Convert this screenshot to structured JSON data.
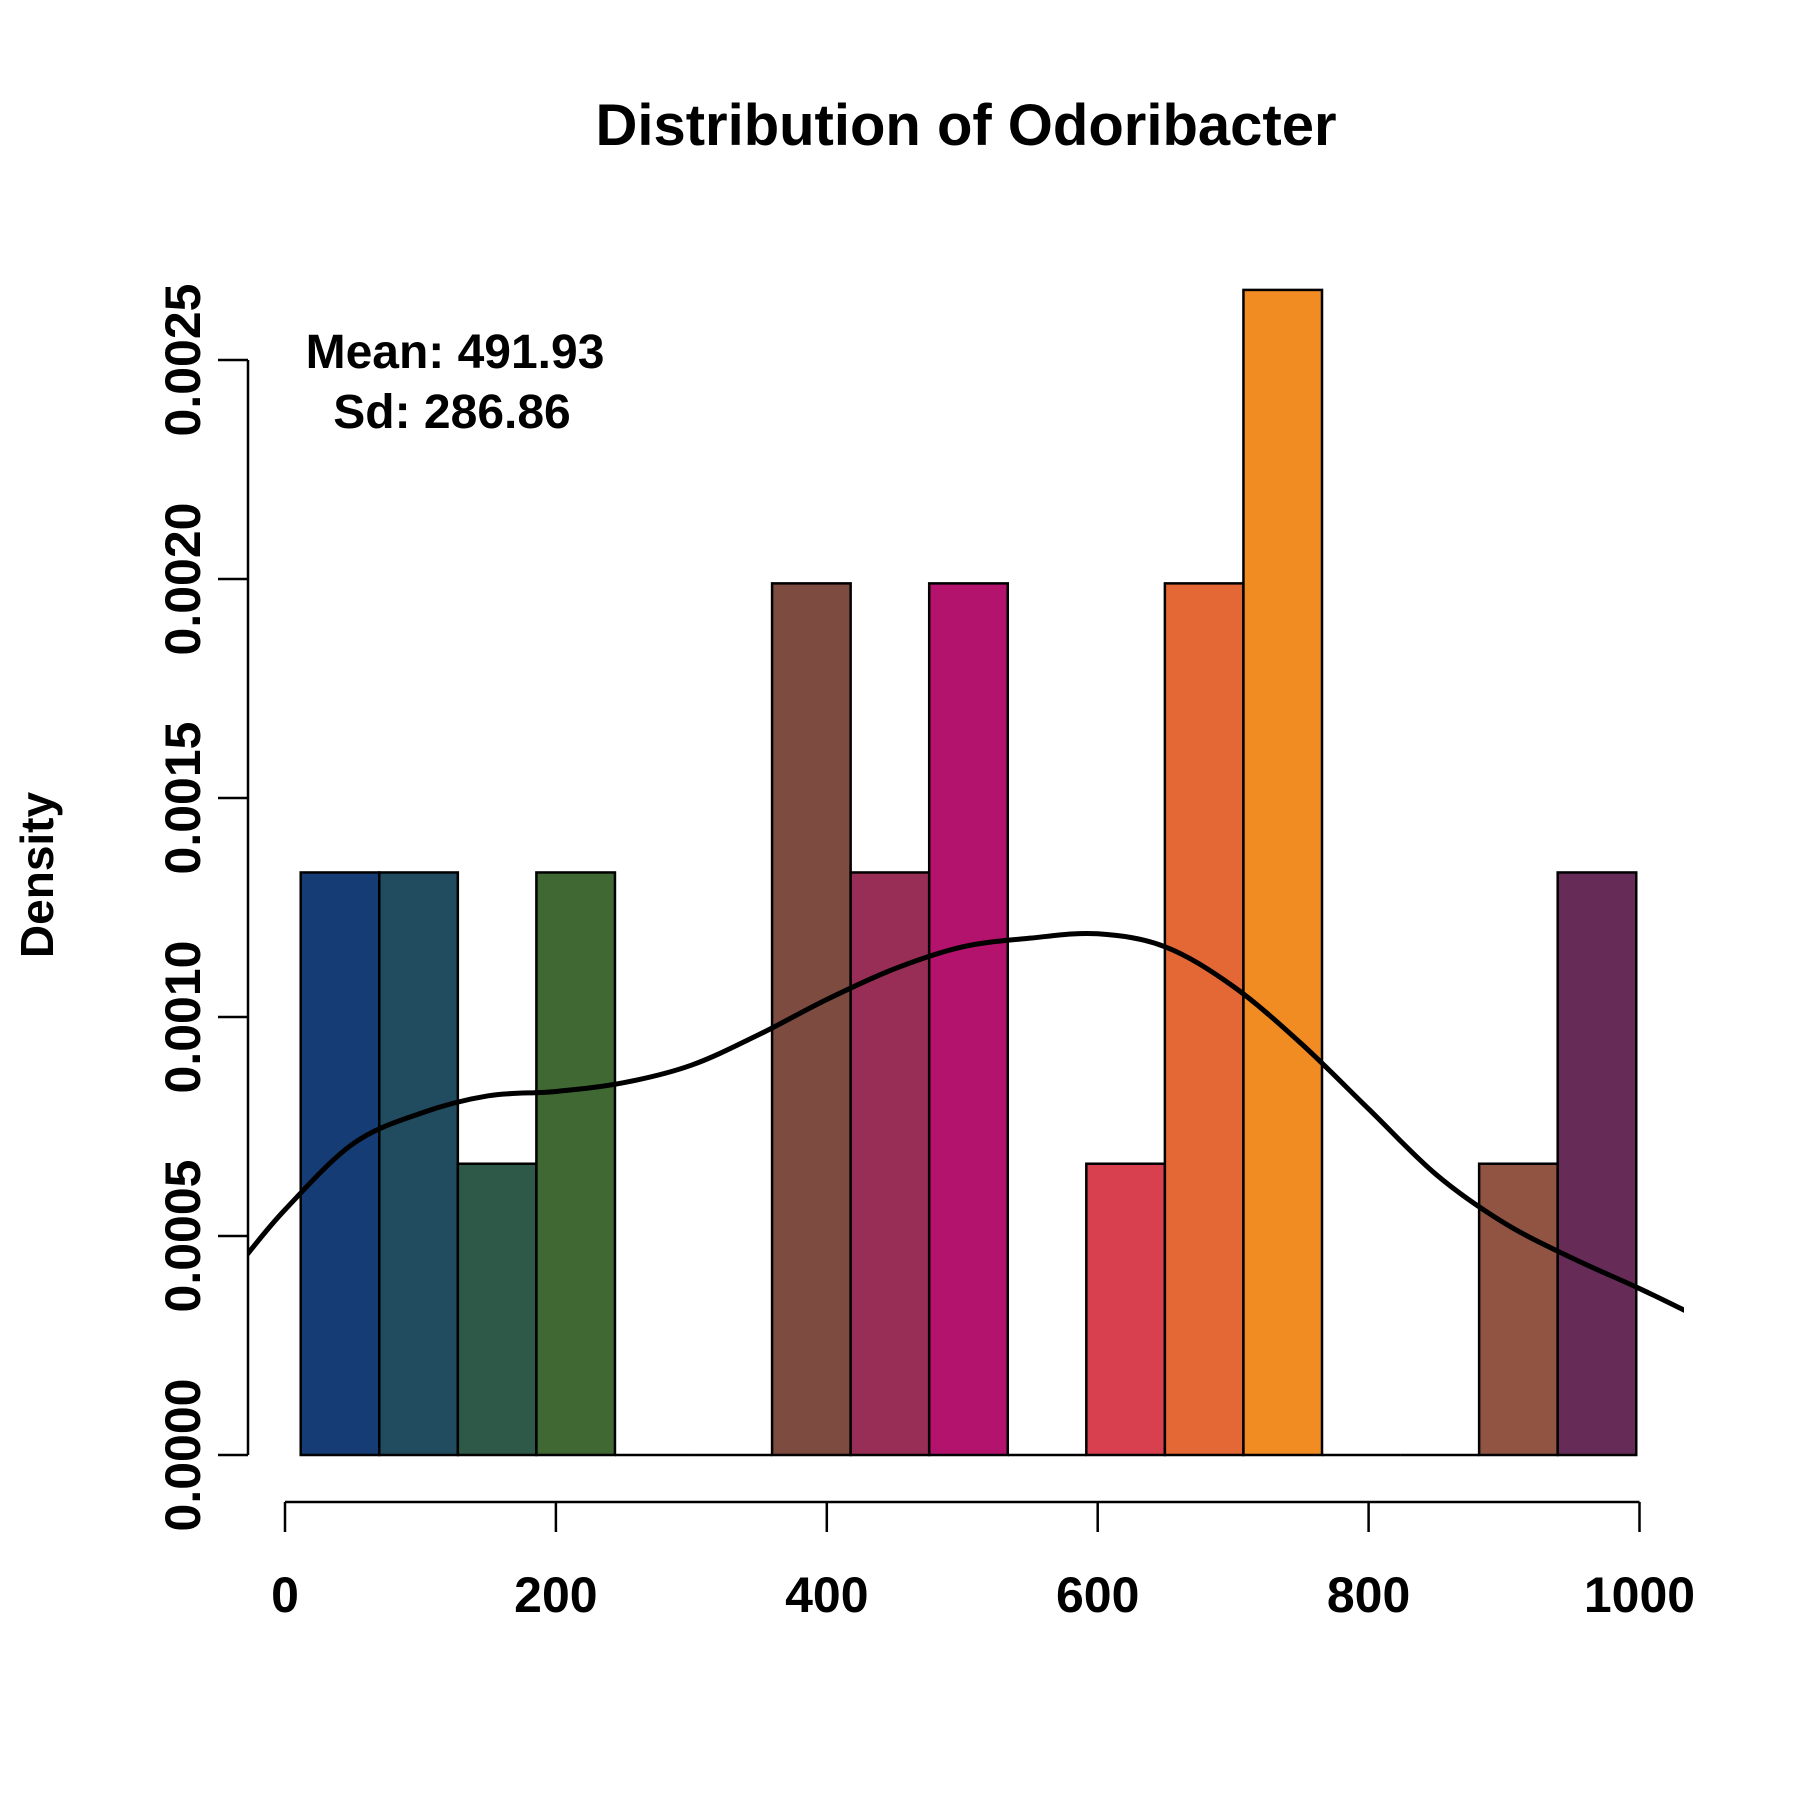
{
  "chart_data": {
    "type": "bar",
    "title": "Distribution of Odoribacter",
    "xlabel": "",
    "ylabel": "Density",
    "xlim": [
      -40,
      1040
    ],
    "ylim": [
      0,
      0.0027
    ],
    "x_ticks": [
      0,
      200,
      400,
      600,
      800,
      1000
    ],
    "x_tick_labels": [
      "0",
      "200",
      "400",
      "600",
      "800",
      "1000"
    ],
    "y_ticks": [
      0,
      0.0005,
      0.001,
      0.0015,
      0.002,
      0.0025
    ],
    "y_tick_labels": [
      "0.0000",
      "0.0005",
      "0.0010",
      "0.0015",
      "0.0020",
      "0.0025"
    ],
    "grid": false,
    "annotations": [
      "Mean: 491.93",
      "Sd: 286.86"
    ],
    "histogram": {
      "bin_edges": [
        11.6,
        69.6,
        127.6,
        185.6,
        243.6,
        301.6,
        359.6,
        417.6,
        475.6,
        533.6,
        591.6,
        649.6,
        707.6,
        765.6,
        823.6,
        881.6,
        939.6,
        997.6
      ],
      "density": [
        0.00133,
        0.00133,
        0.000665,
        0.00133,
        0,
        0,
        0.00199,
        0.00133,
        0.00199,
        0,
        0.000665,
        0.00199,
        0.00266,
        0,
        0,
        0.000665,
        0.00133
      ],
      "colors": [
        "#153c75",
        "#214c5f",
        "#2e5847",
        "#3f6832",
        "#ffffff",
        "#ffffff",
        "#7d4b3f",
        "#982e55",
        "#b3126d",
        "#ffffff",
        "#d8404f",
        "#e46736",
        "#f08c22",
        "#ffffff",
        "#ffffff",
        "#915342",
        "#662c57"
      ]
    },
    "density_curve": {
      "name": "",
      "x": [
        -30,
        0,
        50,
        100,
        150,
        200,
        250,
        300,
        350,
        400,
        450,
        500,
        550,
        600,
        650,
        700,
        750,
        800,
        850,
        900,
        950,
        1000,
        1040
      ],
      "y": [
        0.00045,
        0.00056,
        0.00071,
        0.00078,
        0.00082,
        0.00083,
        0.00085,
        0.00089,
        0.00096,
        0.00104,
        0.00111,
        0.00116,
        0.00118,
        0.00119,
        0.00116,
        0.00107,
        0.00094,
        0.00079,
        0.00064,
        0.00053,
        0.00045,
        0.00038,
        0.00032
      ]
    }
  }
}
